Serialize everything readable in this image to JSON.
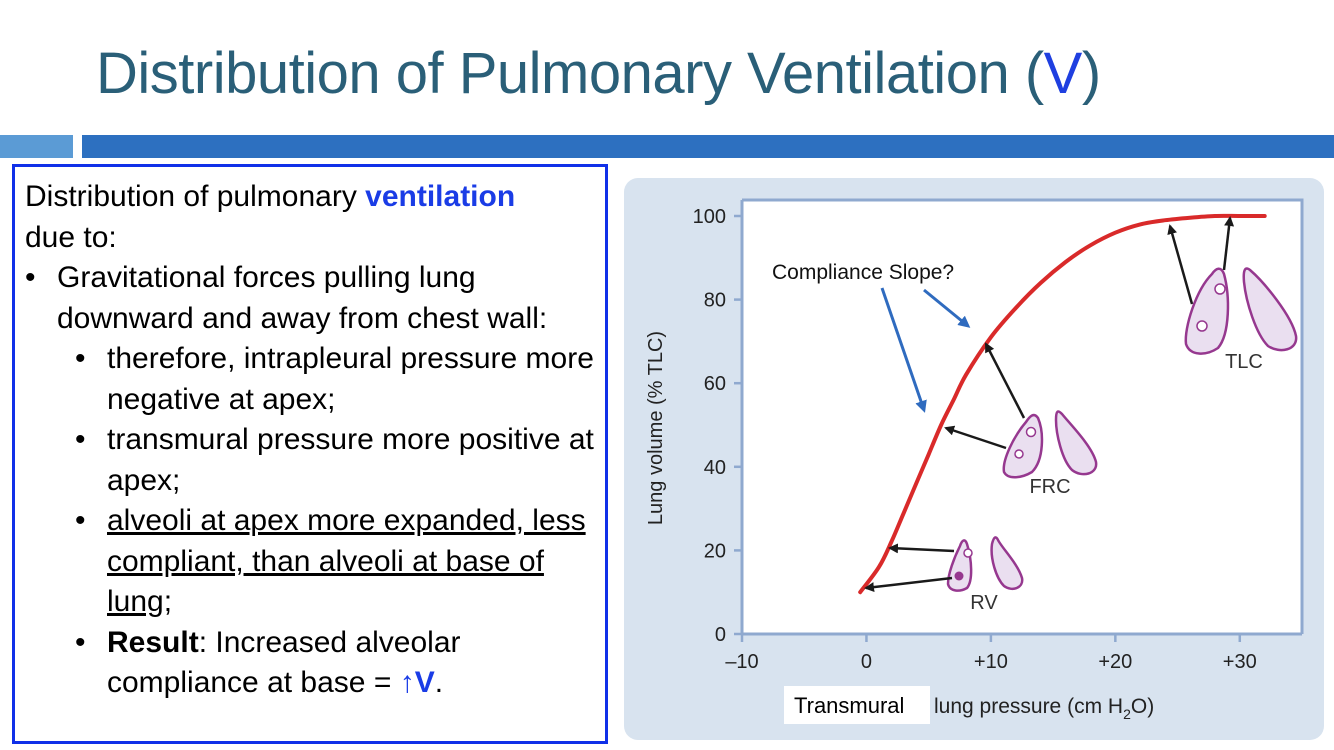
{
  "slide": {
    "title_main": "Distribution of Pulmonary Ventilation (",
    "title_symbol": "V",
    "title_end": ")"
  },
  "textbox": {
    "intro_before": "Distribution of pulmonary ",
    "intro_highlight": "ventilation",
    "intro_after": "due to:",
    "bullet1": "Gravitational forces pulling lung downward and away from chest wall:",
    "sub1": "therefore, intrapleural pressure more negative at apex;",
    "sub2": "transmural pressure more positive at apex;",
    "sub3_underlined": "alveoli at apex more expanded, less compliant, than alveoli at base of lung",
    "sub3_end": ";",
    "sub4_bold": "Result",
    "sub4_text": ": Increased alveolar compliance at base = ",
    "sub4_arrow": "↑",
    "sub4_symbol": "V",
    "sub4_end": "."
  },
  "figure": {
    "annotation": "Compliance Slope?",
    "lung_labels": {
      "rv": "RV",
      "frc": "FRC",
      "tlc": "TLC"
    },
    "xlabel_left": "Transmural",
    "xlabel_right_pre": "lung pressure (cm H",
    "xlabel_sub": "2",
    "xlabel_right_post": "O)",
    "colors": {
      "curve": "#d92a2a",
      "axis": "#8fa9cf",
      "lung_stroke": "#96388f",
      "lung_fill": "#eadff0",
      "arrow_blue": "#2f6bbf"
    }
  },
  "chart_data": {
    "type": "line",
    "title": "",
    "xlabel": "Transmural lung pressure (cm H2O)",
    "ylabel": "Lung volume (% TLC)",
    "xlim": [
      -10,
      35
    ],
    "ylim": [
      0,
      100
    ],
    "xticks": [
      "–10",
      "0",
      "+10",
      "+20",
      "+30"
    ],
    "xtick_values": [
      -10,
      0,
      10,
      20,
      30
    ],
    "yticks": [
      "0",
      "20",
      "40",
      "60",
      "80",
      "100"
    ],
    "ytick_values": [
      0,
      20,
      40,
      60,
      80,
      100
    ],
    "series": [
      {
        "x": [
          -0.5,
          1,
          2,
          3,
          4,
          5,
          6,
          7,
          8,
          10,
          12,
          14,
          16,
          18,
          20,
          22,
          24,
          26,
          28,
          30,
          32
        ],
        "y": [
          10,
          16,
          22,
          29,
          36,
          43,
          50,
          56,
          62,
          71,
          78,
          84,
          89,
          93,
          96,
          98,
          99,
          99.6,
          100,
          100,
          100
        ]
      }
    ]
  }
}
